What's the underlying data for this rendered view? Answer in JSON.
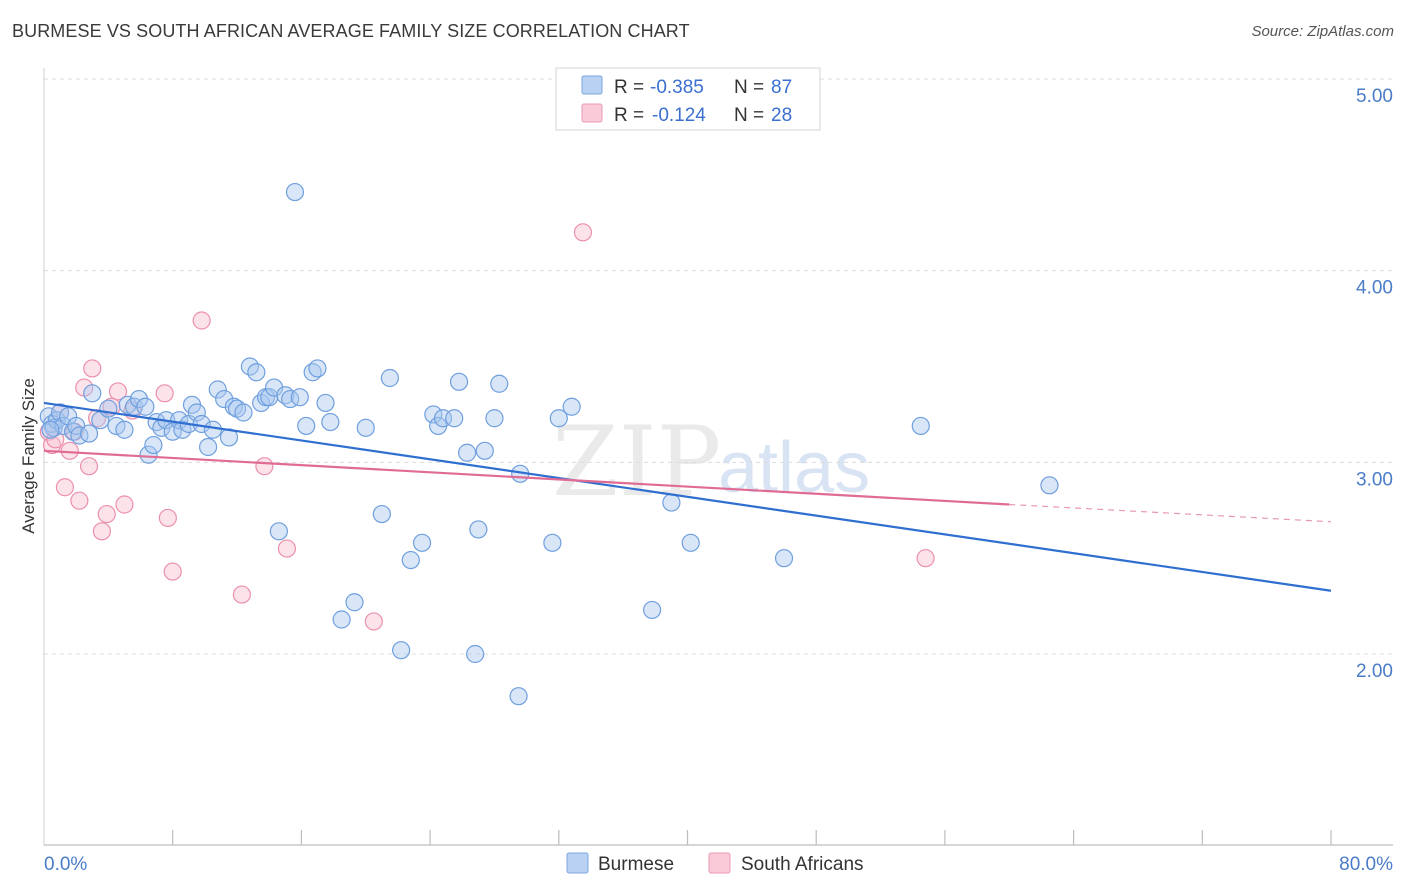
{
  "header": {
    "title": "BURMESE VS SOUTH AFRICAN AVERAGE FAMILY SIZE CORRELATION CHART",
    "source": "Source: ZipAtlas.com"
  },
  "watermark": {
    "zip": "ZIP",
    "atlas": "atlas"
  },
  "colors": {
    "burmese_fill": "#a8c8f0",
    "burmese_stroke": "#6f9fde",
    "burmese_line": "#2f6fd0",
    "south_african_fill": "#f8c0d0",
    "south_african_stroke": "#ec90ac",
    "south_african_line": "#e06c94",
    "axis_text": "#4a7cc8",
    "grid": "#dcdcdc"
  },
  "legend": {
    "rows": [
      {
        "r_label": "R =",
        "r_value": "-0.385",
        "n_label": "N =",
        "n_value": "87"
      },
      {
        "r_label": "R =",
        "r_value": "-0.124",
        "n_label": "N =",
        "n_value": "28"
      }
    ]
  },
  "bottom_legend": {
    "items": [
      "Burmese",
      "South Africans"
    ]
  },
  "chart_data": {
    "type": "scatter",
    "title": "BURMESE VS SOUTH AFRICAN AVERAGE FAMILY SIZE CORRELATION CHART",
    "xlabel": "",
    "ylabel": "Average Family Size",
    "xlim": [
      0,
      80
    ],
    "ylim": [
      1.0,
      5.1
    ],
    "x_tick_labels": [
      "0.0%",
      "80.0%"
    ],
    "y_ticks": [
      2.0,
      3.0,
      4.0,
      5.0
    ],
    "y_tick_labels": [
      "2.00",
      "3.00",
      "4.00",
      "5.00"
    ],
    "grid": true,
    "series": [
      {
        "name": "Burmese",
        "r": -0.385,
        "n": 87,
        "trend": {
          "x0": 0,
          "y0": 3.31,
          "x1": 80,
          "y1": 2.33
        },
        "points": [
          [
            0.3,
            3.24
          ],
          [
            0.5,
            3.2
          ],
          [
            0.6,
            3.18
          ],
          [
            0.8,
            3.22
          ],
          [
            1.0,
            3.26
          ],
          [
            1.2,
            3.19
          ],
          [
            1.5,
            3.24
          ],
          [
            1.8,
            3.16
          ],
          [
            2.0,
            3.19
          ],
          [
            2.2,
            3.14
          ],
          [
            2.8,
            3.15
          ],
          [
            3.0,
            3.36
          ],
          [
            3.5,
            3.22
          ],
          [
            4.0,
            3.28
          ],
          [
            4.5,
            3.19
          ],
          [
            5.0,
            3.17
          ],
          [
            5.2,
            3.3
          ],
          [
            5.6,
            3.29
          ],
          [
            5.9,
            3.33
          ],
          [
            6.3,
            3.29
          ],
          [
            6.5,
            3.04
          ],
          [
            6.8,
            3.09
          ],
          [
            7.0,
            3.21
          ],
          [
            7.3,
            3.18
          ],
          [
            7.6,
            3.22
          ],
          [
            8.0,
            3.16
          ],
          [
            8.4,
            3.22
          ],
          [
            8.6,
            3.17
          ],
          [
            9.0,
            3.2
          ],
          [
            9.2,
            3.3
          ],
          [
            9.5,
            3.26
          ],
          [
            9.8,
            3.2
          ],
          [
            10.2,
            3.08
          ],
          [
            10.5,
            3.17
          ],
          [
            10.8,
            3.38
          ],
          [
            11.2,
            3.33
          ],
          [
            11.5,
            3.13
          ],
          [
            11.8,
            3.29
          ],
          [
            12.0,
            3.28
          ],
          [
            12.4,
            3.26
          ],
          [
            12.8,
            3.5
          ],
          [
            13.2,
            3.47
          ],
          [
            13.5,
            3.31
          ],
          [
            13.8,
            3.34
          ],
          [
            14.0,
            3.34
          ],
          [
            14.3,
            3.39
          ],
          [
            14.6,
            2.64
          ],
          [
            15.0,
            3.35
          ],
          [
            15.3,
            3.33
          ],
          [
            15.6,
            4.41
          ],
          [
            15.9,
            3.34
          ],
          [
            16.3,
            3.19
          ],
          [
            16.7,
            3.47
          ],
          [
            17.0,
            3.49
          ],
          [
            17.5,
            3.31
          ],
          [
            17.8,
            3.21
          ],
          [
            18.5,
            2.18
          ],
          [
            19.3,
            2.27
          ],
          [
            20.0,
            3.18
          ],
          [
            21.0,
            2.73
          ],
          [
            21.5,
            3.44
          ],
          [
            22.2,
            2.02
          ],
          [
            22.8,
            2.49
          ],
          [
            23.5,
            2.58
          ],
          [
            24.2,
            3.25
          ],
          [
            24.5,
            3.19
          ],
          [
            24.8,
            3.23
          ],
          [
            25.5,
            3.23
          ],
          [
            25.8,
            3.42
          ],
          [
            26.3,
            3.05
          ],
          [
            26.8,
            2.0
          ],
          [
            27.0,
            2.65
          ],
          [
            27.4,
            3.06
          ],
          [
            28.0,
            3.23
          ],
          [
            28.3,
            3.41
          ],
          [
            29.5,
            1.78
          ],
          [
            29.6,
            2.94
          ],
          [
            31.6,
            2.58
          ],
          [
            32.0,
            3.23
          ],
          [
            32.8,
            3.29
          ],
          [
            37.8,
            2.23
          ],
          [
            39.0,
            2.79
          ],
          [
            40.2,
            2.58
          ],
          [
            46.0,
            2.5
          ],
          [
            54.5,
            3.19
          ],
          [
            62.5,
            2.88
          ],
          [
            0.4,
            3.17
          ]
        ]
      },
      {
        "name": "South Africans",
        "r": -0.124,
        "n": 28,
        "trend": {
          "x0": 0,
          "y0": 3.06,
          "x1": 60,
          "y1": 2.78,
          "dashed_to_x": 80,
          "dashed_to_y": 2.69
        },
        "points": [
          [
            0.3,
            3.16
          ],
          [
            0.5,
            3.09
          ],
          [
            0.7,
            3.12
          ],
          [
            1.0,
            3.26
          ],
          [
            1.3,
            2.87
          ],
          [
            1.6,
            3.06
          ],
          [
            1.9,
            3.16
          ],
          [
            2.2,
            2.8
          ],
          [
            2.5,
            3.39
          ],
          [
            2.8,
            2.98
          ],
          [
            3.0,
            3.49
          ],
          [
            3.3,
            3.23
          ],
          [
            3.6,
            2.64
          ],
          [
            3.9,
            2.73
          ],
          [
            4.2,
            3.29
          ],
          [
            4.6,
            3.37
          ],
          [
            5.0,
            2.78
          ],
          [
            5.5,
            3.27
          ],
          [
            7.5,
            3.36
          ],
          [
            7.7,
            2.71
          ],
          [
            8.0,
            2.43
          ],
          [
            9.8,
            3.74
          ],
          [
            12.3,
            2.31
          ],
          [
            13.7,
            2.98
          ],
          [
            15.1,
            2.55
          ],
          [
            20.5,
            2.17
          ],
          [
            33.5,
            4.2
          ],
          [
            54.8,
            2.5
          ]
        ]
      }
    ]
  }
}
